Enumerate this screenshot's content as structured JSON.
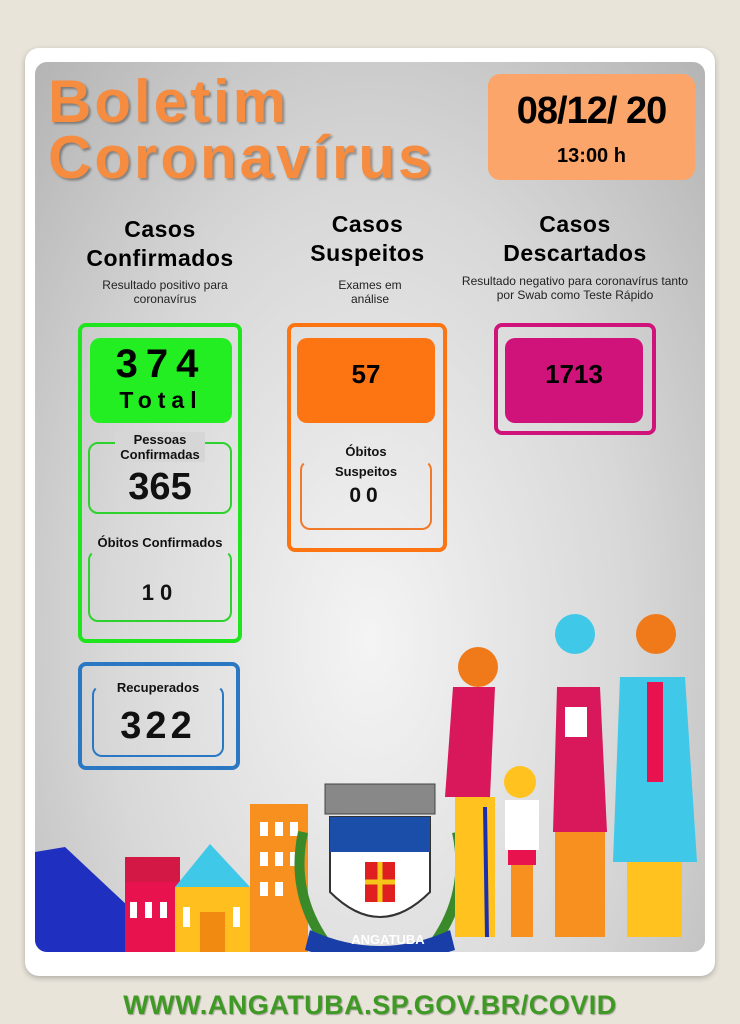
{
  "header": {
    "title_line1": "Boletim",
    "title_line2": "Coronavírus",
    "date": "08/12/ 20",
    "time": "13:00 h"
  },
  "confirmados": {
    "title_line1": "Casos",
    "title_line2": "Confirmados",
    "subtitle": "Resultado positivo para coronavírus",
    "total": "374",
    "total_label": "Total",
    "pessoas_label": "Pessoas Confirmadas",
    "pessoas_value": "365",
    "obitos_label": "Óbitos Confirmados",
    "obitos_value": "10"
  },
  "recuperados": {
    "label": "Recuperados",
    "value": "322"
  },
  "suspeitos": {
    "title_line1": "Casos",
    "title_line2": "Suspeitos",
    "subtitle": "Exames em análise",
    "value": "57",
    "obitos_label": "Óbitos",
    "obitos_label2": "Suspeitos",
    "obitos_value": "00"
  },
  "descartados": {
    "title_line1": "Casos",
    "title_line2": "Descartados",
    "subtitle": "Resultado negativo para coronavírus tanto por Swab como Teste Rápido",
    "value": "1713"
  },
  "logo": {
    "text": "ANGATUBA"
  },
  "footer": {
    "url": "WWW.ANGATUBA.SP.GOV.BR/COVID"
  },
  "colors": {
    "green": "#1fe51f",
    "orange": "#fd7412",
    "magenta": "#d0137a",
    "blue": "#2a78c4",
    "title_orange": "#f58c3f",
    "footer_green": "#3e9a24"
  }
}
